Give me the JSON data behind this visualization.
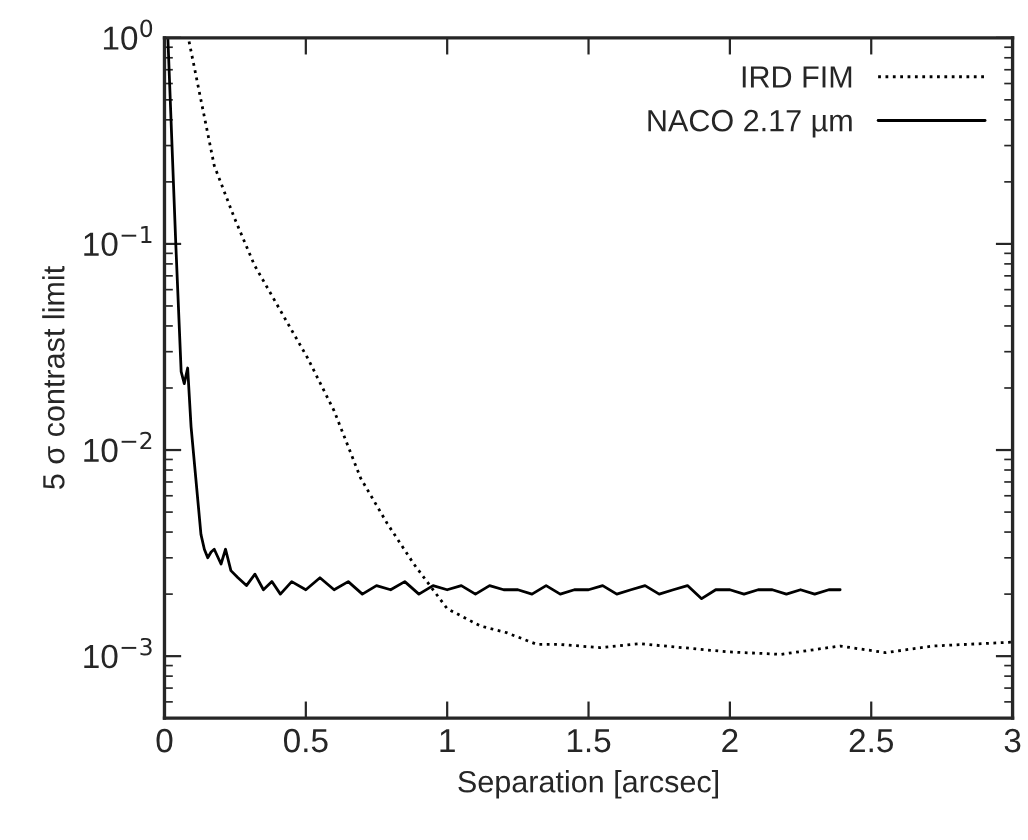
{
  "chart_data": {
    "type": "line",
    "xlabel": "Separation [arcsec]",
    "ylabel": "5 σ contrast limit",
    "log": "y",
    "grid": false,
    "legend": "top right",
    "xlim": [
      0,
      3
    ],
    "xticks": [
      0,
      0.5,
      1,
      1.5,
      2,
      2.5,
      3
    ],
    "ylim": [
      0.0005,
      1
    ],
    "yticks": [
      {
        "value": 1,
        "label": "10$^{0}$"
      },
      {
        "value": 0.1,
        "label": "10$^{−1}$"
      },
      {
        "value": 0.01,
        "label": "10$^{−2}$"
      },
      {
        "value": 0.001,
        "label": "10$^{−3}$"
      }
    ],
    "series": [
      {
        "name": "IRD FIM",
        "color": "#000000",
        "line_style": "dotted",
        "x": [
          0.087,
          0.176,
          0.247,
          0.318,
          0.412,
          0.506,
          0.6,
          0.694,
          0.788,
          0.882,
          1.0,
          1.118,
          1.21,
          1.318,
          1.4,
          1.54,
          1.68,
          1.99,
          2.18,
          2.39,
          2.55,
          2.72,
          3.0
        ],
        "values": [
          0.96,
          0.24,
          0.134,
          0.079,
          0.047,
          0.028,
          0.0155,
          0.0073,
          0.0044,
          0.0028,
          0.0017,
          0.0014,
          0.0013,
          0.00114,
          0.00114,
          0.0011,
          0.00115,
          0.00105,
          0.00102,
          0.00112,
          0.00104,
          0.00112,
          0.00117
        ]
      },
      {
        "name": "NACO 2.17 µm",
        "color": "#000000",
        "line_style": "solid",
        "x": [
          0.012,
          0.04,
          0.059,
          0.07,
          0.082,
          0.094,
          0.129,
          0.141,
          0.153,
          0.165,
          0.176,
          0.2,
          0.216,
          0.235,
          0.26,
          0.29,
          0.32,
          0.35,
          0.38,
          0.41,
          0.45,
          0.5,
          0.55,
          0.6,
          0.65,
          0.7,
          0.75,
          0.8,
          0.85,
          0.9,
          0.95,
          1.0,
          1.05,
          1.1,
          1.15,
          1.2,
          1.25,
          1.3,
          1.35,
          1.4,
          1.45,
          1.5,
          1.55,
          1.6,
          1.65,
          1.7,
          1.75,
          1.8,
          1.85,
          1.9,
          1.95,
          2.0,
          2.05,
          2.1,
          2.15,
          2.2,
          2.25,
          2.3,
          2.35,
          2.39
        ],
        "values": [
          1.0,
          0.1,
          0.024,
          0.021,
          0.025,
          0.013,
          0.0039,
          0.0033,
          0.003,
          0.0032,
          0.0033,
          0.0028,
          0.0033,
          0.0026,
          0.0024,
          0.0022,
          0.0025,
          0.0021,
          0.0023,
          0.002,
          0.0023,
          0.0021,
          0.0024,
          0.0021,
          0.0023,
          0.002,
          0.0022,
          0.0021,
          0.0023,
          0.002,
          0.0022,
          0.0021,
          0.0022,
          0.002,
          0.0022,
          0.0021,
          0.0021,
          0.002,
          0.0022,
          0.002,
          0.0021,
          0.0021,
          0.0022,
          0.002,
          0.0021,
          0.0022,
          0.002,
          0.0021,
          0.0022,
          0.0019,
          0.0021,
          0.0021,
          0.002,
          0.0021,
          0.0021,
          0.002,
          0.0021,
          0.002,
          0.0021,
          0.0021
        ]
      }
    ]
  }
}
